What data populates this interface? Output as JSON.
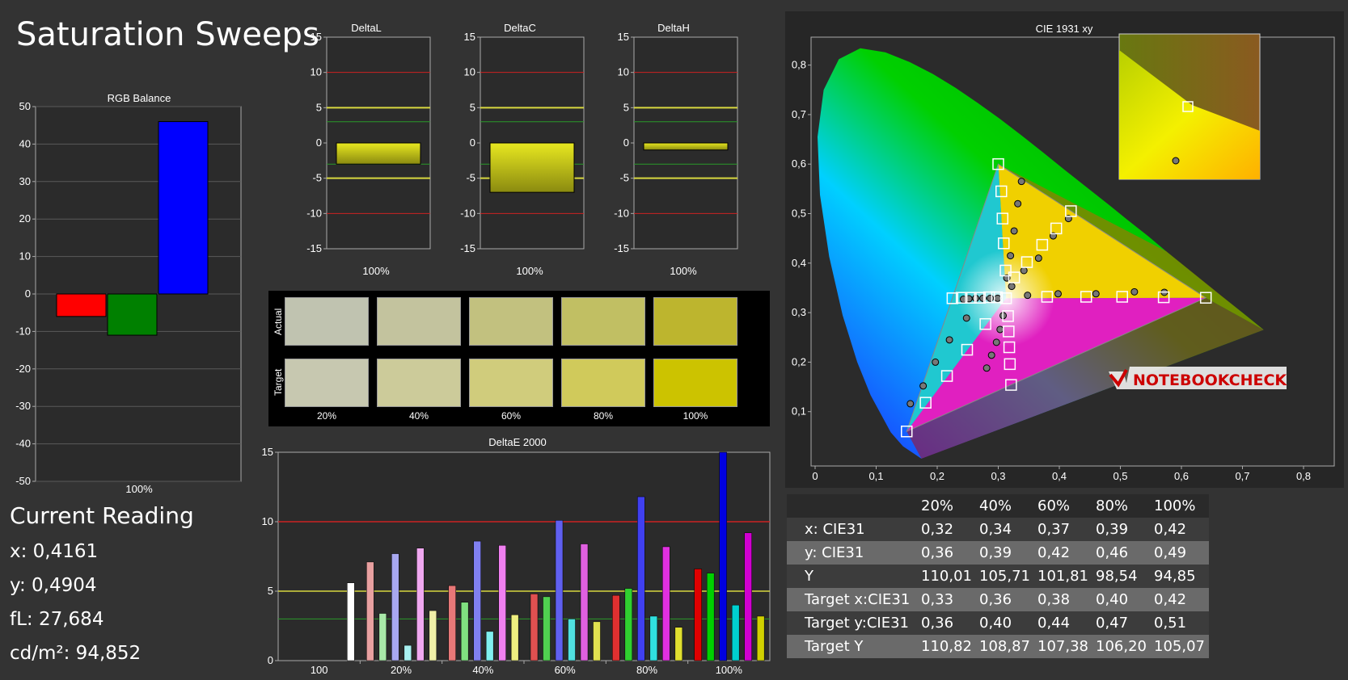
{
  "page_title": "Saturation Sweeps",
  "current_reading": {
    "heading": "Current Reading",
    "x": "x: 0,4161",
    "y": "y: 0,4904",
    "fl": "fL: 27,684",
    "cdm2": "cd/m²: 94,852"
  },
  "swatches": {
    "actual_label": "Actual",
    "target_label": "Target",
    "labels": [
      "20%",
      "40%",
      "60%",
      "80%",
      "100%"
    ],
    "actual_colors": [
      "#c0c3b0",
      "#c3c39e",
      "#c2c17f",
      "#c1bf63",
      "#bdb52e"
    ],
    "target_colors": [
      "#c7c8b0",
      "#cccb9a",
      "#d0cc7c",
      "#d0ca5b",
      "#ccc300"
    ]
  },
  "stats_table": {
    "columns": [
      "20%",
      "40%",
      "60%",
      "80%",
      "100%"
    ],
    "rows": [
      {
        "label": "x: CIE31",
        "values": [
          "0,32",
          "0,34",
          "0,37",
          "0,39",
          "0,42"
        ]
      },
      {
        "label": "y: CIE31",
        "values": [
          "0,36",
          "0,39",
          "0,42",
          "0,46",
          "0,49"
        ]
      },
      {
        "label": "Y",
        "values": [
          "110,01",
          "105,71",
          "101,81",
          "98,54",
          "94,85"
        ]
      },
      {
        "label": "Target x:CIE31",
        "values": [
          "0,33",
          "0,36",
          "0,38",
          "0,40",
          "0,42"
        ]
      },
      {
        "label": "Target y:CIE31",
        "values": [
          "0,36",
          "0,40",
          "0,44",
          "0,47",
          "0,51"
        ]
      },
      {
        "label": "Target Y",
        "values": [
          "110,82",
          "108,87",
          "107,38",
          "106,20",
          "105,07"
        ]
      }
    ]
  },
  "watermark": "NOTEBOOKCHECK",
  "chart_data": [
    {
      "type": "bar",
      "title": "RGB Balance",
      "categories": [
        "100%"
      ],
      "series": [
        {
          "color": "#ff0000",
          "values": [
            -6
          ]
        },
        {
          "color": "#008000",
          "values": [
            -11
          ]
        },
        {
          "color": "#0000ff",
          "values": [
            46
          ]
        }
      ],
      "ylim": [
        -50,
        50
      ],
      "yticks": [
        "50",
        "40",
        "30",
        "20",
        "10",
        "0",
        "-10",
        "-20",
        "-30",
        "-40",
        "-50"
      ],
      "grid": true
    },
    {
      "type": "bar",
      "title": "DeltaL",
      "categories": [
        "100%"
      ],
      "values": [
        -3
      ],
      "ylim": [
        -15,
        15
      ],
      "yticks": [
        "15",
        "10",
        "5",
        "0",
        "-5",
        "-10",
        "-15"
      ]
    },
    {
      "type": "bar",
      "title": "DeltaC",
      "categories": [
        "100%"
      ],
      "values": [
        -7
      ],
      "ylim": [
        -15,
        15
      ],
      "yticks": [
        "15",
        "10",
        "5",
        "0",
        "-5",
        "-10",
        "-15"
      ]
    },
    {
      "type": "bar",
      "title": "DeltaH",
      "categories": [
        "100%"
      ],
      "values": [
        -1
      ],
      "ylim": [
        -15,
        15
      ],
      "yticks": [
        "15",
        "10",
        "5",
        "0",
        "-5",
        "-10",
        "-15"
      ]
    },
    {
      "type": "bar",
      "title": "DeltaE 2000",
      "categories": [
        "100",
        "20%",
        "40%",
        "60%",
        "80%",
        "100%"
      ],
      "groups": [
        {
          "category": "100",
          "values": [
            5.6
          ],
          "colors": [
            "#ffffff"
          ]
        },
        {
          "category": "20%",
          "values": [
            7.1,
            3.4,
            7.7,
            1.1,
            8.1,
            3.6
          ],
          "colors": [
            "#e8a0a0",
            "#a8e8a8",
            "#a8a8f0",
            "#a8f0f0",
            "#f0a8f0",
            "#f0f0a8"
          ]
        },
        {
          "category": "40%",
          "values": [
            5.4,
            4.2,
            8.6,
            2.1,
            8.3,
            3.3
          ],
          "colors": [
            "#e87878",
            "#80e080",
            "#8080f0",
            "#80f0f0",
            "#f080f0",
            "#f0f080"
          ]
        },
        {
          "category": "60%",
          "values": [
            4.8,
            4.6,
            10.1,
            3.0,
            8.4,
            2.8
          ],
          "colors": [
            "#e05050",
            "#50d050",
            "#6060f0",
            "#50e0e0",
            "#e060e0",
            "#e0e050"
          ]
        },
        {
          "category": "80%",
          "values": [
            4.7,
            5.2,
            11.8,
            3.2,
            8.2,
            2.4
          ],
          "colors": [
            "#e03030",
            "#30d030",
            "#4040f0",
            "#30e0e0",
            "#e030e0",
            "#e0e030"
          ]
        },
        {
          "category": "100%",
          "values": [
            6.6,
            6.3,
            15.0,
            4.0,
            9.2,
            3.2
          ],
          "colors": [
            "#e00000",
            "#00d000",
            "#0000e0",
            "#00d0d0",
            "#d000d0",
            "#d0d000"
          ]
        }
      ],
      "ylim": [
        0,
        15
      ],
      "yticks": [
        "15",
        "10",
        "5",
        "0"
      ]
    },
    {
      "type": "scatter",
      "title": "CIE 1931 xy",
      "xlim": [
        0,
        0.8
      ],
      "ylim": [
        0,
        0.85
      ],
      "xticks": [
        "0",
        "0,1",
        "0,2",
        "0,3",
        "0,4",
        "0,5",
        "0,6",
        "0,7",
        "0,8"
      ],
      "yticks": [
        "0,1",
        "0,2",
        "0,3",
        "0,4",
        "0,5",
        "0,6",
        "0,7",
        "0,8"
      ],
      "gamut_triangle": [
        [
          0.64,
          0.33
        ],
        [
          0.3,
          0.6
        ],
        [
          0.15,
          0.06
        ]
      ],
      "target_points": [
        [
          0.64,
          0.33
        ],
        [
          0.571,
          0.331
        ],
        [
          0.503,
          0.332
        ],
        [
          0.444,
          0.332
        ],
        [
          0.38,
          0.332
        ],
        [
          0.3,
          0.6
        ],
        [
          0.305,
          0.545
        ],
        [
          0.307,
          0.49
        ],
        [
          0.309,
          0.44
        ],
        [
          0.312,
          0.385
        ],
        [
          0.15,
          0.06
        ],
        [
          0.181,
          0.118
        ],
        [
          0.216,
          0.172
        ],
        [
          0.249,
          0.225
        ],
        [
          0.279,
          0.277
        ],
        [
          0.225,
          0.329
        ],
        [
          0.24,
          0.33
        ],
        [
          0.255,
          0.33
        ],
        [
          0.27,
          0.33
        ],
        [
          0.285,
          0.331
        ],
        [
          0.298,
          0.331
        ],
        [
          0.321,
          0.154
        ],
        [
          0.319,
          0.196
        ],
        [
          0.318,
          0.23
        ],
        [
          0.317,
          0.262
        ],
        [
          0.316,
          0.293
        ],
        [
          0.419,
          0.505
        ],
        [
          0.395,
          0.47
        ],
        [
          0.372,
          0.437
        ],
        [
          0.347,
          0.402
        ],
        [
          0.326,
          0.371
        ],
        [
          0.3127,
          0.329
        ]
      ],
      "measured_points": [
        [
          0.572,
          0.341
        ],
        [
          0.523,
          0.342
        ],
        [
          0.46,
          0.338
        ],
        [
          0.398,
          0.338
        ],
        [
          0.348,
          0.335
        ],
        [
          0.338,
          0.565
        ],
        [
          0.332,
          0.52
        ],
        [
          0.326,
          0.465
        ],
        [
          0.32,
          0.415
        ],
        [
          0.314,
          0.37
        ],
        [
          0.156,
          0.116
        ],
        [
          0.177,
          0.152
        ],
        [
          0.197,
          0.2
        ],
        [
          0.22,
          0.245
        ],
        [
          0.248,
          0.289
        ],
        [
          0.243,
          0.327
        ],
        [
          0.252,
          0.328
        ],
        [
          0.263,
          0.329
        ],
        [
          0.275,
          0.329
        ],
        [
          0.287,
          0.329
        ],
        [
          0.299,
          0.329
        ],
        [
          0.281,
          0.188
        ],
        [
          0.289,
          0.214
        ],
        [
          0.297,
          0.24
        ],
        [
          0.303,
          0.266
        ],
        [
          0.308,
          0.294
        ],
        [
          0.415,
          0.49
        ],
        [
          0.39,
          0.455
        ],
        [
          0.366,
          0.41
        ],
        [
          0.342,
          0.385
        ],
        [
          0.322,
          0.353
        ]
      ],
      "inset_points": {
        "target": [
          0.42,
          0.51
        ],
        "measured": [
          0.4161,
          0.4904
        ]
      }
    }
  ]
}
